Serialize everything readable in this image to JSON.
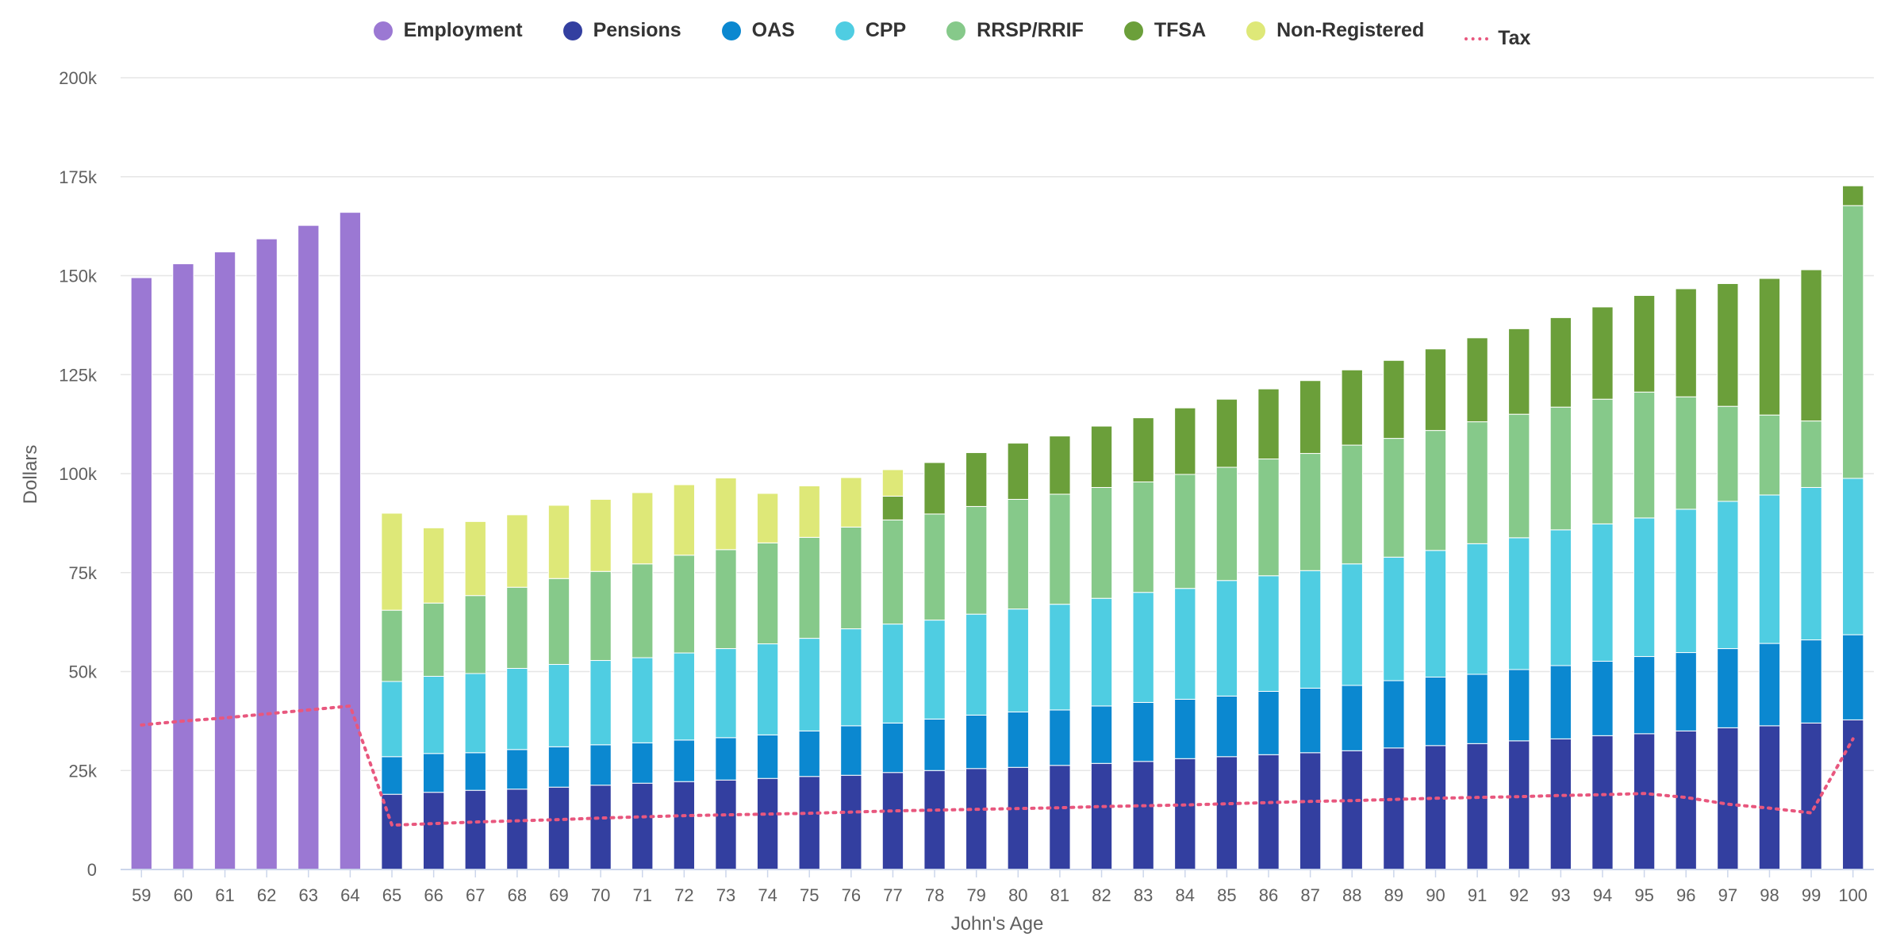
{
  "chart_data": {
    "type": "bar",
    "stacked": true,
    "title": "",
    "xlabel": "John's Age",
    "ylabel": "Dollars",
    "ylim": [
      0,
      200000
    ],
    "yticks": [
      {
        "value": 0,
        "label": "0"
      },
      {
        "value": 25000,
        "label": "25k"
      },
      {
        "value": 50000,
        "label": "50k"
      },
      {
        "value": 75000,
        "label": "75k"
      },
      {
        "value": 100000,
        "label": "100k"
      },
      {
        "value": 125000,
        "label": "125k"
      },
      {
        "value": 150000,
        "label": "150k"
      },
      {
        "value": 175000,
        "label": "175k"
      },
      {
        "value": 200000,
        "label": "200k"
      }
    ],
    "grid": true,
    "legend_position": "top-center",
    "categories": [
      "59",
      "60",
      "61",
      "62",
      "63",
      "64",
      "65",
      "66",
      "67",
      "68",
      "69",
      "70",
      "71",
      "72",
      "73",
      "74",
      "75",
      "76",
      "77",
      "78",
      "79",
      "80",
      "81",
      "82",
      "83",
      "84",
      "85",
      "86",
      "87",
      "88",
      "89",
      "90",
      "91",
      "92",
      "93",
      "94",
      "95",
      "96",
      "97",
      "98",
      "99",
      "100"
    ],
    "series": [
      {
        "name": "Employment",
        "color": "#9b78d3",
        "values": [
          149500,
          153000,
          156000,
          159300,
          162700,
          166000,
          0,
          0,
          0,
          0,
          0,
          0,
          0,
          0,
          0,
          0,
          0,
          0,
          0,
          0,
          0,
          0,
          0,
          0,
          0,
          0,
          0,
          0,
          0,
          0,
          0,
          0,
          0,
          0,
          0,
          0,
          0,
          0,
          0,
          0,
          0,
          0
        ]
      },
      {
        "name": "Pensions",
        "color": "#333fa0",
        "values": [
          0,
          0,
          0,
          0,
          0,
          0,
          19000,
          19500,
          20000,
          20300,
          20800,
          21300,
          21800,
          22200,
          22600,
          23000,
          23500,
          23800,
          24500,
          25000,
          25500,
          25800,
          26300,
          26800,
          27300,
          28000,
          28500,
          29000,
          29500,
          30000,
          30700,
          31300,
          31800,
          32500,
          33000,
          33800,
          34300,
          35000,
          35800,
          36300,
          37000,
          37800
        ]
      },
      {
        "name": "OAS",
        "color": "#0b88d0",
        "values": [
          0,
          0,
          0,
          0,
          0,
          0,
          9500,
          9800,
          9500,
          10000,
          10200,
          10200,
          10200,
          10500,
          10700,
          11000,
          11500,
          12500,
          12500,
          13000,
          13500,
          14000,
          14000,
          14500,
          14900,
          15000,
          15300,
          16000,
          16300,
          16500,
          17000,
          17300,
          17500,
          18000,
          18500,
          18800,
          19500,
          19800,
          20000,
          20800,
          21000,
          21500
        ]
      },
      {
        "name": "CPP",
        "color": "#4fcde2",
        "values": [
          0,
          0,
          0,
          0,
          0,
          0,
          19000,
          19500,
          20000,
          20500,
          20800,
          21300,
          21500,
          22000,
          22500,
          23000,
          23400,
          24500,
          25000,
          25000,
          25500,
          26000,
          26700,
          27200,
          27800,
          28000,
          29200,
          29200,
          29700,
          30700,
          31200,
          32000,
          33000,
          33300,
          34300,
          34700,
          35000,
          36200,
          37200,
          37500,
          38500,
          39500
        ]
      },
      {
        "name": "RRSP/RRIF",
        "color": "#86c98a",
        "values": [
          0,
          0,
          0,
          0,
          0,
          0,
          18000,
          18500,
          19700,
          20500,
          21700,
          22500,
          23700,
          24700,
          25000,
          25500,
          25500,
          25700,
          26300,
          26800,
          27200,
          27700,
          27800,
          28000,
          27900,
          28800,
          28600,
          29500,
          29600,
          30000,
          30000,
          30300,
          30800,
          31200,
          31000,
          31500,
          31800,
          28400,
          24000,
          20200,
          16800,
          68900
        ]
      },
      {
        "name": "TFSA",
        "color": "#6b9f3a",
        "values": [
          0,
          0,
          0,
          0,
          0,
          0,
          0,
          0,
          0,
          0,
          0,
          0,
          0,
          0,
          0,
          0,
          0,
          0,
          6000,
          13000,
          13600,
          14200,
          14700,
          15500,
          16200,
          16800,
          17200,
          17700,
          18400,
          19000,
          19700,
          20600,
          21200,
          21600,
          22600,
          23300,
          24400,
          27300,
          31000,
          34500,
          38200,
          5000
        ]
      },
      {
        "name": "Non-Registered",
        "color": "#dee878",
        "values": [
          0,
          0,
          0,
          0,
          0,
          0,
          24500,
          19000,
          18700,
          18300,
          18500,
          18200,
          18000,
          17800,
          18100,
          12500,
          13000,
          12500,
          6700,
          0,
          0,
          0,
          0,
          0,
          0,
          0,
          0,
          0,
          0,
          0,
          0,
          0,
          0,
          0,
          0,
          0,
          0,
          0,
          0,
          0,
          0,
          0
        ]
      }
    ],
    "line_series": [
      {
        "name": "Tax",
        "color": "#e8577e",
        "style": "dotted",
        "values": [
          36500,
          37500,
          38300,
          39300,
          40300,
          41300,
          11200,
          11600,
          12000,
          12300,
          12600,
          13000,
          13300,
          13600,
          13800,
          14000,
          14200,
          14500,
          14800,
          15000,
          15200,
          15400,
          15600,
          15900,
          16100,
          16300,
          16600,
          16900,
          17200,
          17400,
          17700,
          18000,
          18200,
          18400,
          18700,
          18900,
          19200,
          18200,
          16500,
          15500,
          14300,
          33000
        ]
      }
    ]
  }
}
